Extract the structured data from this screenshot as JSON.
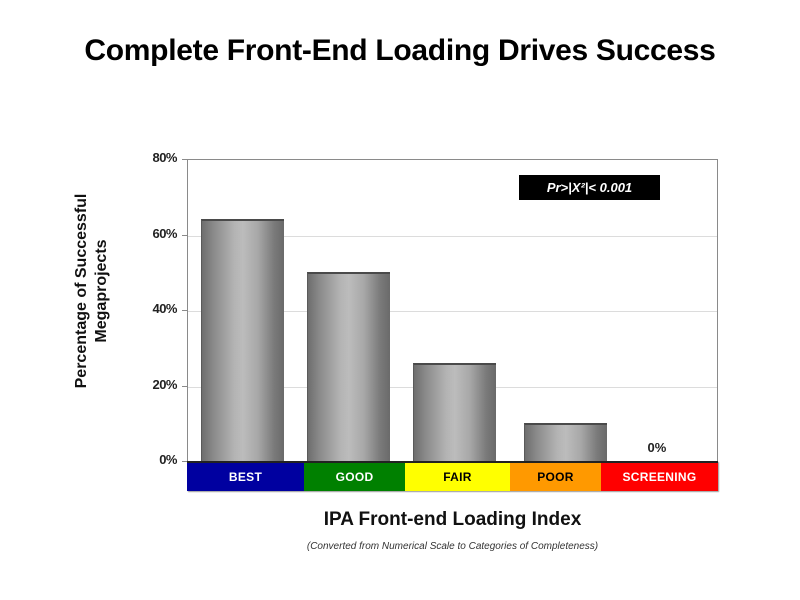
{
  "slide": {
    "title": "Complete Front-End Loading Drives Success"
  },
  "chart_data": {
    "type": "bar",
    "title": "Complete Front-End Loading Drives Success",
    "categories": [
      "BEST",
      "GOOD",
      "FAIR",
      "POOR",
      "SCREENING"
    ],
    "values": [
      64,
      50,
      26,
      10,
      0
    ],
    "unit": "%",
    "xlabel": "IPA Front-end Loading Index",
    "xlabel_subtitle": "(Converted from Numerical Scale to Categories of Completeness)",
    "ylabel": "Percentage of Successful Megaprojects",
    "ylim": [
      0,
      80
    ],
    "yticks": [
      "0%",
      "20%",
      "40%",
      "60%",
      "80%"
    ],
    "grid": true,
    "annotation": "Pr>|X²|< 0.001",
    "data_labels": [
      {
        "category": "SCREENING",
        "text": "0%"
      }
    ],
    "category_colors": {
      "BEST": "#0000a0",
      "GOOD": "#008000",
      "FAIR": "#ffff00",
      "POOR": "#ff9900",
      "SCREENING": "#ff0000"
    },
    "category_text_colors": {
      "BEST": "#ffffff",
      "GOOD": "#ffffff",
      "FAIR": "#000000",
      "POOR": "#000000",
      "SCREENING": "#ffffff"
    },
    "legend": null
  }
}
